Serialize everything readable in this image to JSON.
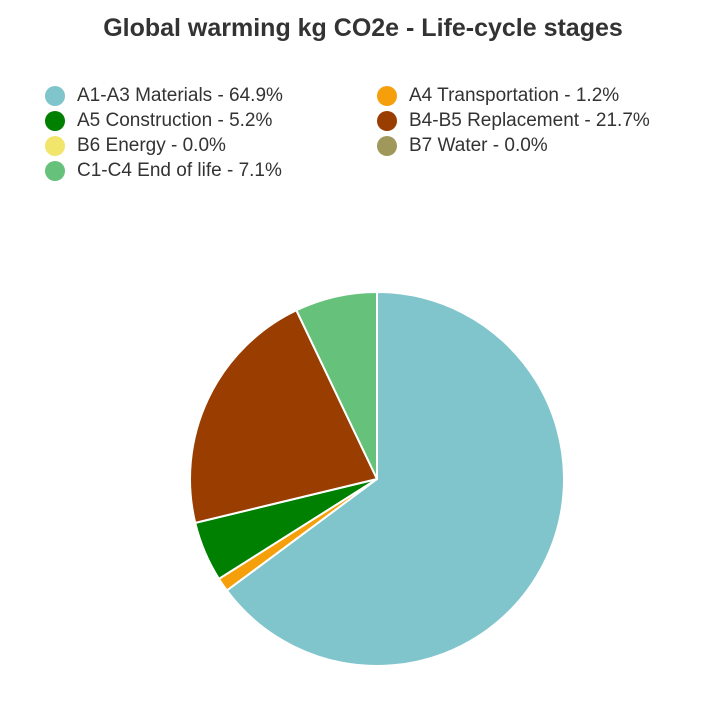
{
  "chart_data": {
    "type": "pie",
    "title": "Global warming kg CO2e - Life-cycle stages",
    "legend_position": "top",
    "slices": [
      {
        "label": "A1-A3 Materials - 64.9%",
        "value": 64.9,
        "color": "#80c4cc"
      },
      {
        "label": "A4 Transportation - 1.2%",
        "value": 1.2,
        "color": "#f5a00a"
      },
      {
        "label": "A5 Construction - 5.2%",
        "value": 5.2,
        "color": "#008000"
      },
      {
        "label": "B4-B5 Replacement - 21.7%",
        "value": 21.7,
        "color": "#993d00"
      },
      {
        "label": "B6 Energy - 0.0%",
        "value": 0.0,
        "color": "#f2e56b"
      },
      {
        "label": "B7 Water - 0.0%",
        "value": 0.0,
        "color": "#a0985a"
      },
      {
        "label": "C1-C4 End of life - 7.1%",
        "value": 7.1,
        "color": "#66c27a"
      }
    ]
  }
}
